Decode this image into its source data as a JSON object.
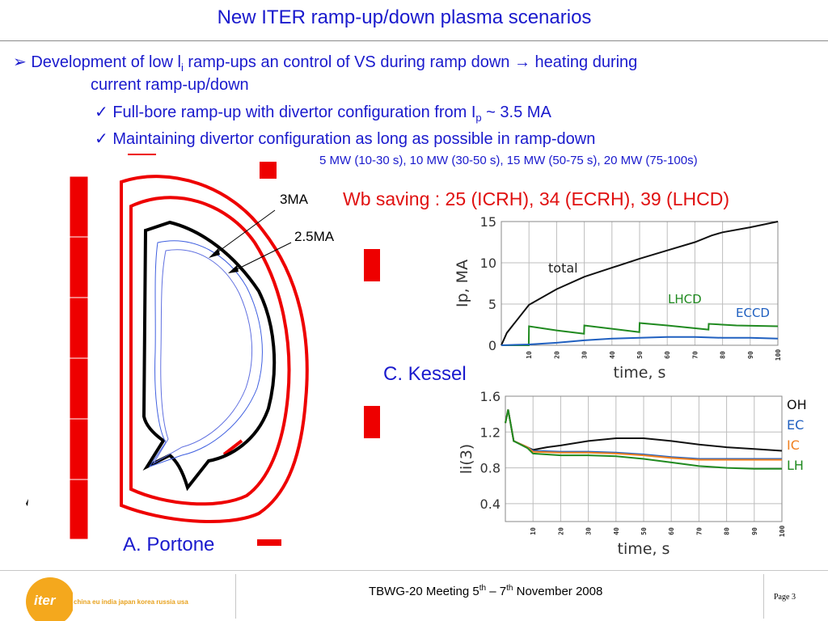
{
  "slide": {
    "title": "New ITER ramp-up/down plasma scenarios",
    "bullet_main_prefix": "Development of low l",
    "bullet_main_sub": "i",
    "bullet_main_suffix": " ramp-ups an control of VS during ramp down ",
    "arrow_glyph": "→",
    "bullet_main_tail": " heating during",
    "bullet_main_line2": "current ramp-up/down",
    "check1_prefix": "Full-bore ramp-up with divertor configuration from I",
    "check1_sub": "p",
    "check1_suffix": " ~ 3.5 MA",
    "check2": "Maintaining divertor configuration as long as possible in ramp-down",
    "power_note": "5 MW (10-30 s), 10 MW (30-50 s), 15 MW (50-75 s), 20 MW (75-100s)",
    "wb_saving": "Wb saving : 25 (ICRH), 34 (ECRH), 39 (LHCD)",
    "label_3ma": "3MA",
    "label_25ma": "2.5MA",
    "author_left": "A. Portone",
    "author_right": "C. Kessel"
  },
  "footer": {
    "meeting_prefix": "TBWG-20 Meeting 5",
    "meeting_sup1": "th",
    "meeting_mid": " – 7",
    "meeting_sup2": "th",
    "meeting_suffix": " November 2008",
    "page": "Page 3",
    "logo_text": "iter",
    "logo_tagline": "china eu india japan korea russia usa"
  },
  "colors": {
    "text_blue": "#1a1acd",
    "accent_red": "#e01010",
    "coil_red": "#ee0000",
    "logo_orange": "#f4a81d"
  },
  "chart_data": [
    {
      "type": "line",
      "xlabel": "time, s",
      "ylabel": "Ip, MA",
      "xlim": [
        0,
        100
      ],
      "ylim": [
        0,
        15
      ],
      "x_ticks": [
        "10",
        "20",
        "30",
        "40",
        "50",
        "60",
        "70",
        "80",
        "90",
        "100"
      ],
      "y_ticks": [
        "0",
        "5",
        "10",
        "15"
      ],
      "grid": true,
      "series": [
        {
          "name": "total",
          "color": "#111111",
          "x": [
            0,
            2,
            10,
            20,
            30,
            40,
            50,
            60,
            70,
            76,
            80,
            90,
            100
          ],
          "y": [
            0,
            1.5,
            4.9,
            6.8,
            8.3,
            9.4,
            10.5,
            11.5,
            12.5,
            13.3,
            13.7,
            14.3,
            15
          ]
        },
        {
          "name": "LHCD",
          "color": "#208a20",
          "x": [
            0,
            8,
            9.9,
            10,
            20,
            29.9,
            30,
            40,
            49.9,
            50,
            60,
            74.9,
            75,
            85,
            100
          ],
          "y": [
            0,
            0,
            0,
            2.3,
            1.8,
            1.4,
            2.4,
            2.0,
            1.6,
            2.7,
            2.4,
            1.9,
            2.6,
            2.4,
            2.3
          ]
        },
        {
          "name": "ECCD",
          "color": "#2060c0",
          "x": [
            0,
            10,
            20,
            30,
            40,
            50,
            60,
            70,
            80,
            90,
            100
          ],
          "y": [
            0,
            0.1,
            0.3,
            0.6,
            0.8,
            0.9,
            1.0,
            1.0,
            0.9,
            0.9,
            0.8
          ]
        }
      ]
    },
    {
      "type": "line",
      "xlabel": "time, s",
      "ylabel": "li(3)",
      "xlim": [
        0,
        100
      ],
      "ylim": [
        0.2,
        1.6
      ],
      "x_ticks": [
        "10",
        "20",
        "30",
        "40",
        "50",
        "60",
        "70",
        "80",
        "90",
        "100"
      ],
      "y_ticks": [
        "1.6",
        "1.2",
        "0.8",
        "0.4"
      ],
      "grid": true,
      "series": [
        {
          "name": "OH",
          "color": "#111111",
          "x": [
            0,
            1,
            3,
            8,
            10,
            15,
            20,
            30,
            40,
            50,
            60,
            70,
            80,
            90,
            100
          ],
          "y": [
            1.3,
            1.45,
            1.1,
            1.03,
            1.0,
            1.03,
            1.05,
            1.1,
            1.13,
            1.13,
            1.1,
            1.06,
            1.03,
            1.01,
            0.99
          ]
        },
        {
          "name": "EC",
          "color": "#2060c0",
          "x": [
            0,
            1,
            3,
            8,
            10,
            20,
            30,
            40,
            50,
            60,
            70,
            80,
            90,
            100
          ],
          "y": [
            1.3,
            1.45,
            1.1,
            1.03,
            0.99,
            0.98,
            0.98,
            0.97,
            0.95,
            0.92,
            0.9,
            0.9,
            0.9,
            0.9
          ]
        },
        {
          "name": "IC",
          "color": "#f08020",
          "x": [
            0,
            1,
            3,
            8,
            10,
            20,
            30,
            40,
            50,
            60,
            70,
            80,
            90,
            100
          ],
          "y": [
            1.3,
            1.45,
            1.1,
            1.03,
            0.98,
            0.97,
            0.97,
            0.96,
            0.94,
            0.91,
            0.89,
            0.89,
            0.89,
            0.89
          ]
        },
        {
          "name": "LH",
          "color": "#208a20",
          "x": [
            0,
            1,
            3,
            8,
            10,
            20,
            30,
            40,
            50,
            60,
            70,
            80,
            90,
            100
          ],
          "y": [
            1.3,
            1.45,
            1.1,
            1.02,
            0.96,
            0.94,
            0.94,
            0.93,
            0.9,
            0.86,
            0.82,
            0.8,
            0.79,
            0.79
          ]
        }
      ]
    }
  ]
}
